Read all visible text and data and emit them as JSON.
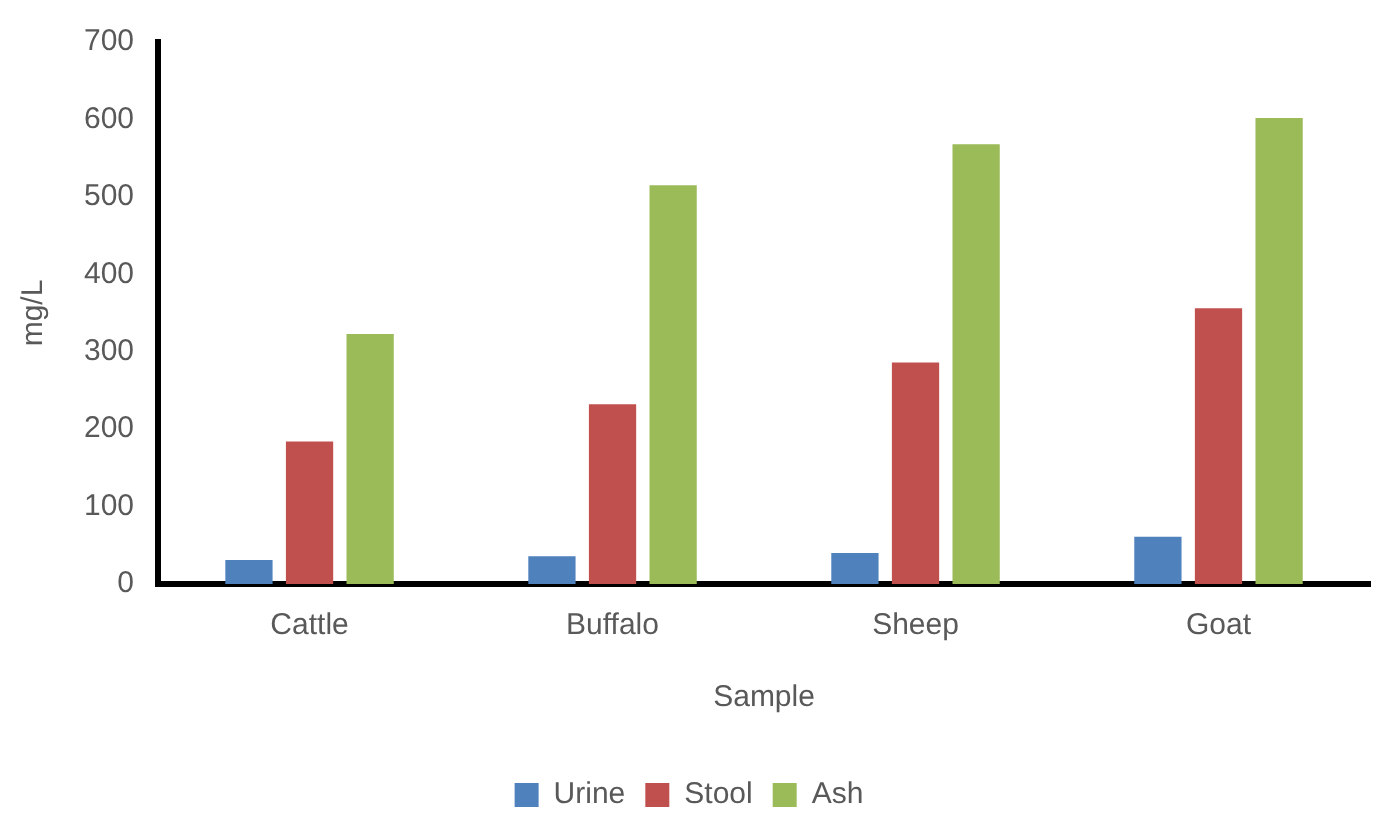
{
  "chart_data": {
    "type": "bar",
    "xlabel": "Sample",
    "ylabel": "mg/L",
    "categories": [
      "Cattle",
      "Buffalo",
      "Sheep",
      "Goat"
    ],
    "series": [
      {
        "name": "Urine",
        "color": "#4f81bd",
        "values": [
          31,
          36,
          40,
          61
        ]
      },
      {
        "name": "Stool",
        "color": "#c0504d",
        "values": [
          184,
          232,
          286,
          356
        ]
      },
      {
        "name": "Ash",
        "color": "#9bbb59",
        "values": [
          323,
          515,
          568,
          602
        ]
      }
    ],
    "ylim": [
      0,
      700
    ],
    "yticks": [
      0,
      100,
      200,
      300,
      400,
      500,
      600,
      700
    ],
    "grid": false,
    "legend": "bottom"
  }
}
